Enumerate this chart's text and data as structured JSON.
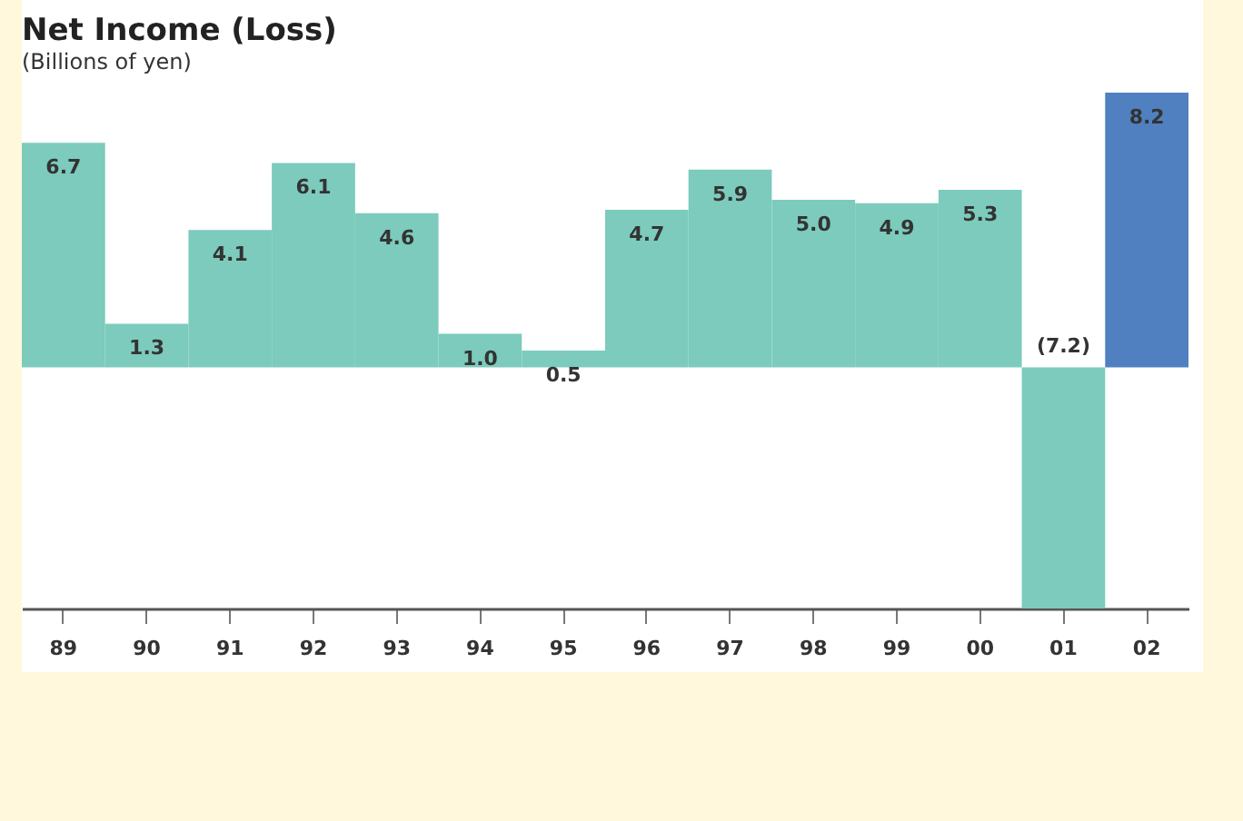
{
  "chart_data": {
    "type": "bar",
    "title": "Net Income (Loss)",
    "subtitle": "(Billions of yen)",
    "categories": [
      "89",
      "90",
      "91",
      "92",
      "93",
      "94",
      "95",
      "96",
      "97",
      "98",
      "99",
      "00",
      "01",
      "02"
    ],
    "values": [
      6.7,
      1.3,
      4.1,
      6.1,
      4.6,
      1.0,
      0.5,
      4.7,
      5.9,
      5.0,
      4.9,
      5.3,
      -7.2,
      8.2
    ],
    "colors": [
      "#7ccbbd",
      "#7ccbbd",
      "#7ccbbd",
      "#7ccbbd",
      "#7ccbbd",
      "#7ccbbd",
      "#7ccbbd",
      "#7ccbbd",
      "#7ccbbd",
      "#7ccbbd",
      "#7ccbbd",
      "#7ccbbd",
      "#7ccbbd",
      "#5080c0"
    ],
    "value_labels": [
      "6.7",
      "1.3",
      "4.1",
      "6.1",
      "4.6",
      "1.0",
      "0.5",
      "4.7",
      "5.9",
      "5.0",
      "4.9",
      "5.3",
      "(7.2)",
      "8.2"
    ],
    "grid": false,
    "legend": false
  }
}
